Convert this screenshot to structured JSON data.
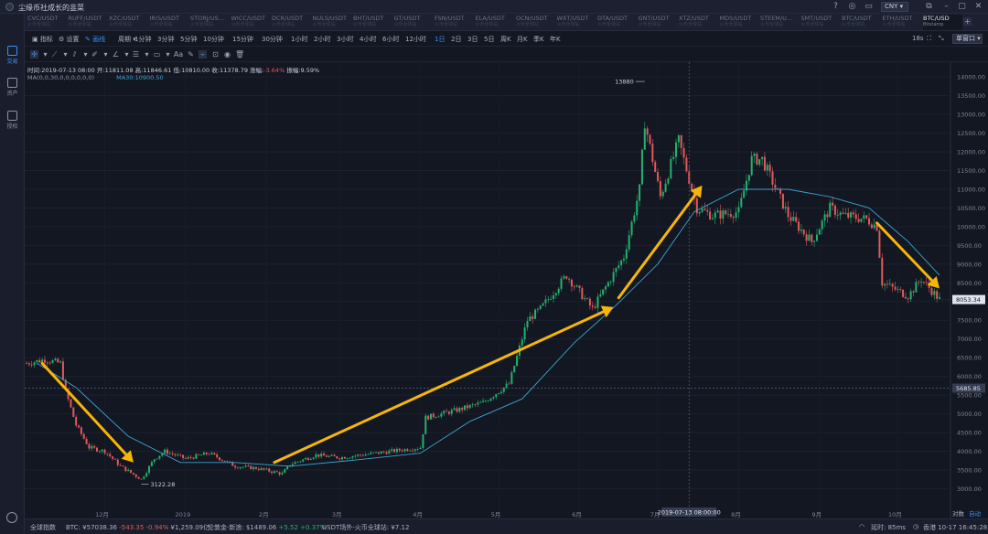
{
  "app": {
    "title": "尘缘币社成长的韭菜",
    "currency": "CNY ▾"
  },
  "sidebar": [
    {
      "label": "交易",
      "active": true
    },
    {
      "label": "资产",
      "active": false
    },
    {
      "label": "授权",
      "active": false
    }
  ],
  "pairs": [
    {
      "name": "CVC/USDT",
      "sub": "火币全球站"
    },
    {
      "name": "RUFF/USDT",
      "sub": "火币全球站"
    },
    {
      "name": "XZC/USDT",
      "sub": "火币全球站"
    },
    {
      "name": "IRIS/USDT",
      "sub": "火币全球站"
    },
    {
      "name": "STORJ/US...",
      "sub": "火币全球站"
    },
    {
      "name": "WICC/USDT",
      "sub": "火币全球站"
    },
    {
      "name": "DCR/USDT",
      "sub": "火币全球站"
    },
    {
      "name": "NULS/USDT",
      "sub": "火币全球站"
    },
    {
      "name": "BHT/USDT",
      "sub": "火币全球站"
    },
    {
      "name": "GT/USDT",
      "sub": "火币全球站"
    },
    {
      "name": "FSN/USDT",
      "sub": "火币全球站"
    },
    {
      "name": "ELA/USDT",
      "sub": "火币全球站"
    },
    {
      "name": "OCN/USDT",
      "sub": "火币全球站"
    },
    {
      "name": "WXT/USDT",
      "sub": "火币全球站"
    },
    {
      "name": "DTA/USDT",
      "sub": "火币全球站"
    },
    {
      "name": "GNT/USDT",
      "sub": "火币全球站"
    },
    {
      "name": "XTZ/USDT",
      "sub": "火币全球站"
    },
    {
      "name": "MDS/USDT",
      "sub": "火币全球站"
    },
    {
      "name": "STEEM/U...",
      "sub": "火币全球站"
    },
    {
      "name": "SMT/USDT",
      "sub": "火币全球站"
    },
    {
      "name": "BTC/USDT",
      "sub": "火币全球站"
    },
    {
      "name": "ETH/USDT",
      "sub": "火币全球站"
    },
    {
      "name": "BTC/USD",
      "sub": "Bitstamp",
      "active": true
    }
  ],
  "toolbar": {
    "indicator": "指标",
    "settings": "设置",
    "drawing": "画线",
    "cycle": "周期",
    "periods": [
      "1分钟",
      "3分钟",
      "5分钟",
      "10分钟",
      "15分钟",
      "30分钟",
      "1小时",
      "2小时",
      "3小时",
      "4小时",
      "6小时",
      "12小时",
      "1日",
      "2日",
      "3日",
      "5日",
      "周K",
      "月K",
      "季K",
      "年K"
    ],
    "active_period": "1日",
    "refresh": "18s",
    "window": "单窗口 ▾"
  },
  "info": {
    "time_label": "时间:",
    "time": "2019-07-13 08:00",
    "open_label": "开:",
    "open": "11811.08",
    "high_label": "高:",
    "high": "11846.61",
    "low_label": "低:",
    "low": "10810.00",
    "close_label": "收:",
    "close": "11378.79",
    "change_label": "涨幅:",
    "change": "-3.64%",
    "amp_label": "振幅:",
    "amp": "9.59%",
    "ma": "MA(0,0,30,0,0,0,0,0,0)",
    "ma30": "MA30:10900.50"
  },
  "chart_data": {
    "type": "candlestick",
    "x_labels": [
      "12月",
      "2019",
      "2月",
      "3月",
      "4月",
      "5月",
      "6月",
      "7月",
      "8月",
      "9月",
      "10月"
    ],
    "crosshair_time": "2019-07-13 08:00:00",
    "y_ticks": [
      3000,
      3500,
      4000,
      4500,
      5000,
      5500,
      6000,
      6500,
      7000,
      7500,
      8000,
      8500,
      9000,
      9500,
      10000,
      10500,
      11000,
      11500,
      12000,
      12500,
      13000,
      13500,
      14000
    ],
    "ylim": [
      2400,
      14200
    ],
    "last_price": "8053.34",
    "crosshair_price": "5685.85",
    "crosshair_price_value": 5685.85,
    "high_marker": "13880",
    "high_value": 13880,
    "low_marker": "3122.28",
    "low_value": 3122.28,
    "colors": {
      "up": "#23b26d",
      "down": "#e05a5a",
      "ma": "#3aa3cf",
      "arrow": "#f5b60a"
    },
    "arrows": [
      {
        "from": [
          "2018-11-07",
          6350
        ],
        "to": [
          "2018-12-12",
          3700
        ]
      },
      {
        "from": [
          "2019-02-04",
          3700
        ],
        "to": [
          "2019-06-14",
          7850
        ]
      },
      {
        "from": [
          "2019-06-16",
          8100
        ],
        "to": [
          "2019-07-18",
          11100
        ]
      },
      {
        "from": [
          "2019-09-23",
          10100
        ],
        "to": [
          "2019-10-17",
          8350
        ]
      }
    ],
    "close_path": [
      [
        "2018-11-01",
        6350
      ],
      [
        "2018-11-08",
        6450
      ],
      [
        "2018-11-14",
        6350
      ],
      [
        "2018-11-16",
        5600
      ],
      [
        "2018-11-20",
        4700
      ],
      [
        "2018-11-25",
        4100
      ],
      [
        "2018-12-01",
        4000
      ],
      [
        "2018-12-07",
        3600
      ],
      [
        "2018-12-15",
        3250
      ],
      [
        "2018-12-20",
        3800
      ],
      [
        "2018-12-24",
        4000
      ],
      [
        "2019-01-01",
        3800
      ],
      [
        "2019-01-10",
        3950
      ],
      [
        "2019-01-20",
        3600
      ],
      [
        "2019-01-28",
        3550
      ],
      [
        "2019-02-07",
        3400
      ],
      [
        "2019-02-10",
        3650
      ],
      [
        "2019-02-20",
        3900
      ],
      [
        "2019-03-01",
        3830
      ],
      [
        "2019-03-15",
        3950
      ],
      [
        "2019-04-01",
        4100
      ],
      [
        "2019-04-03",
        4900
      ],
      [
        "2019-04-15",
        5100
      ],
      [
        "2019-04-25",
        5300
      ],
      [
        "2019-05-05",
        5800
      ],
      [
        "2019-05-12",
        7500
      ],
      [
        "2019-05-17",
        7800
      ],
      [
        "2019-05-27",
        8700
      ],
      [
        "2019-06-06",
        7800
      ],
      [
        "2019-06-18",
        9200
      ],
      [
        "2019-06-24",
        11000
      ],
      [
        "2019-06-26",
        12800
      ],
      [
        "2019-07-02",
        10800
      ],
      [
        "2019-07-09",
        12300
      ],
      [
        "2019-07-16",
        10500
      ],
      [
        "2019-07-22",
        10300
      ],
      [
        "2019-08-01",
        10400
      ],
      [
        "2019-08-06",
        11800
      ],
      [
        "2019-08-10",
        11800
      ],
      [
        "2019-08-20",
        10300
      ],
      [
        "2019-08-29",
        9600
      ],
      [
        "2019-09-05",
        10500
      ],
      [
        "2019-09-10",
        10300
      ],
      [
        "2019-09-19",
        10200
      ],
      [
        "2019-09-23",
        10000
      ],
      [
        "2019-09-25",
        8500
      ],
      [
        "2019-10-05",
        8150
      ],
      [
        "2019-10-10",
        8600
      ],
      [
        "2019-10-17",
        8053
      ]
    ],
    "ma_path": [
      [
        "2018-11-05",
        6350
      ],
      [
        "2018-11-20",
        5700
      ],
      [
        "2018-12-10",
        4400
      ],
      [
        "2018-12-30",
        3700
      ],
      [
        "2019-01-20",
        3700
      ],
      [
        "2019-02-10",
        3600
      ],
      [
        "2019-03-05",
        3750
      ],
      [
        "2019-04-01",
        3950
      ],
      [
        "2019-04-20",
        4800
      ],
      [
        "2019-05-10",
        5400
      ],
      [
        "2019-05-30",
        6900
      ],
      [
        "2019-06-15",
        7900
      ],
      [
        "2019-07-01",
        9000
      ],
      [
        "2019-07-15",
        10400
      ],
      [
        "2019-08-01",
        11000
      ],
      [
        "2019-08-20",
        11000
      ],
      [
        "2019-09-05",
        10800
      ],
      [
        "2019-09-20",
        10500
      ],
      [
        "2019-10-05",
        9600
      ],
      [
        "2019-10-17",
        8700
      ]
    ]
  },
  "status": {
    "global_index": "全球指数",
    "btc_label": "BTC:",
    "btc_price": "¥57038.36",
    "btc_change": "-543.35 -0.94%",
    "btc_cap": "¥1,259.09亿",
    "ethereum_label": "伦敦金·新浪:",
    "gold_price": "$1489.06",
    "gold_change": "+5.52 +0.37%",
    "usdt_label": "USDT场外-火币全球站:",
    "usdt_price": "¥7.12",
    "latency": "延时: 85ms",
    "time": "香港 10-17 16:45:28"
  }
}
